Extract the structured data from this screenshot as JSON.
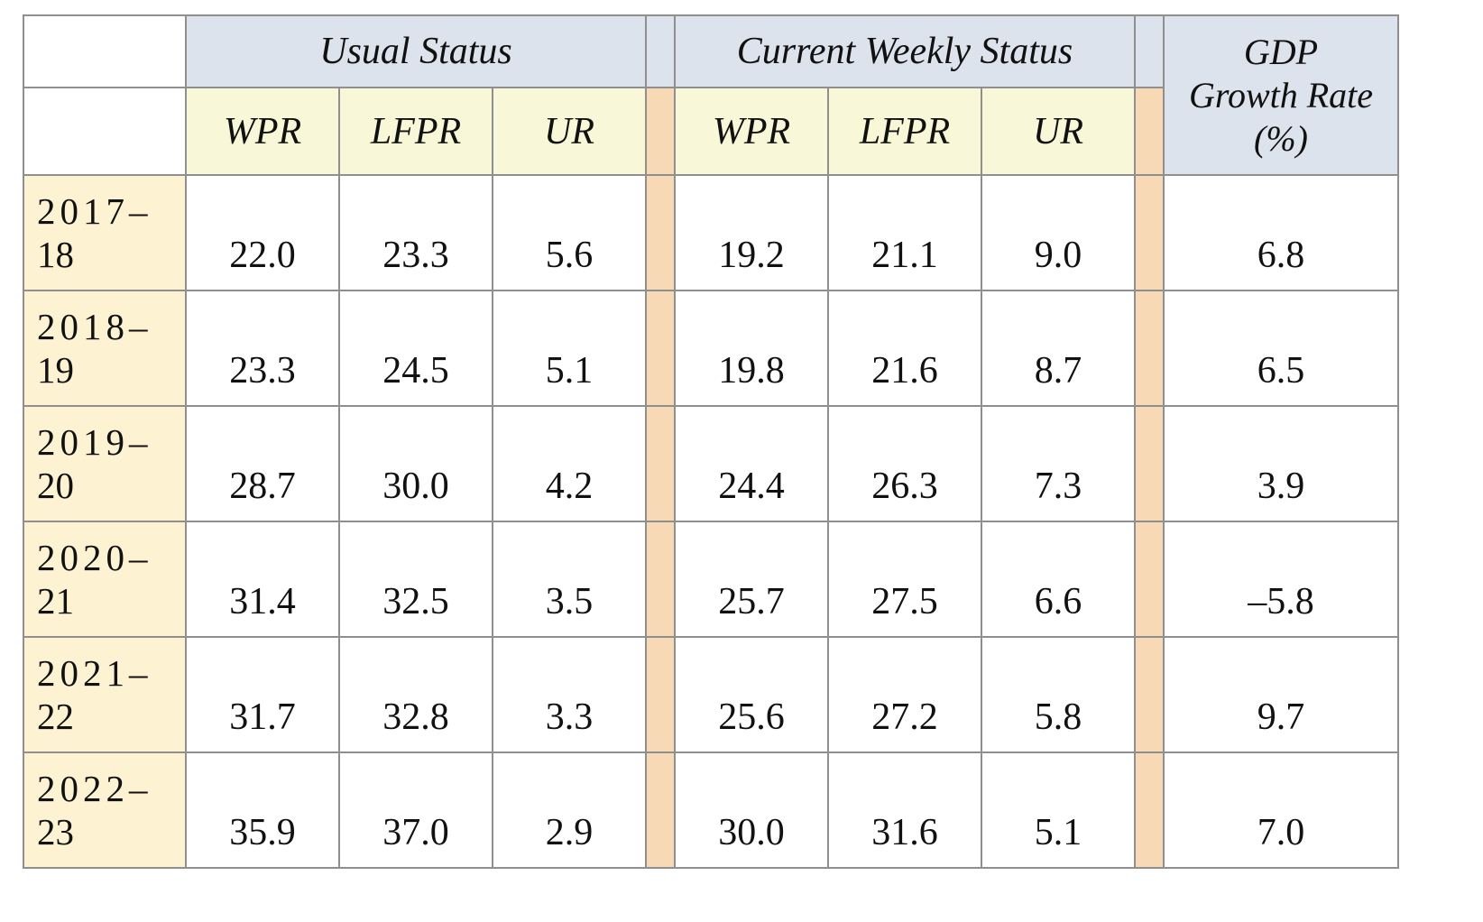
{
  "header": {
    "usual_status": "Usual Status",
    "current_weekly_status": "Current Weekly Status",
    "gdp_line1": "GDP",
    "gdp_line2": "Growth Rate",
    "gdp_line3": "(%)",
    "sub": [
      "WPR",
      "LFPR",
      "UR",
      "WPR",
      "LFPR",
      "UR"
    ]
  },
  "rows": [
    {
      "year_top": "2017–",
      "year_bottom": "18",
      "us": [
        "22.0",
        "23.3",
        "5.6"
      ],
      "cws": [
        "19.2",
        "21.1",
        "9.0"
      ],
      "gdp": "6.8"
    },
    {
      "year_top": "2018–",
      "year_bottom": "19",
      "us": [
        "23.3",
        "24.5",
        "5.1"
      ],
      "cws": [
        "19.8",
        "21.6",
        "8.7"
      ],
      "gdp": "6.5"
    },
    {
      "year_top": "2019–",
      "year_bottom": "20",
      "us": [
        "28.7",
        "30.0",
        "4.2"
      ],
      "cws": [
        "24.4",
        "26.3",
        "7.3"
      ],
      "gdp": "3.9"
    },
    {
      "year_top": "2020–",
      "year_bottom": "21",
      "us": [
        "31.4",
        "32.5",
        "3.5"
      ],
      "cws": [
        "25.7",
        "27.5",
        "6.6"
      ],
      "gdp": "–5.8"
    },
    {
      "year_top": "2021–",
      "year_bottom": "22",
      "us": [
        "31.7",
        "32.8",
        "3.3"
      ],
      "cws": [
        "25.6",
        "27.2",
        "5.8"
      ],
      "gdp": "9.7"
    },
    {
      "year_top": "2022–",
      "year_bottom": "23",
      "us": [
        "35.9",
        "37.0",
        "2.9"
      ],
      "cws": [
        "30.0",
        "31.6",
        "5.1"
      ],
      "gdp": "7.0"
    }
  ],
  "colors": {
    "header_blue": "#dde3ec",
    "subheader_yellow": "#f8f8d8",
    "year_cell": "#fdf3d2",
    "separator_orange": "#f8d9b6",
    "border": "#8f8f8f"
  }
}
